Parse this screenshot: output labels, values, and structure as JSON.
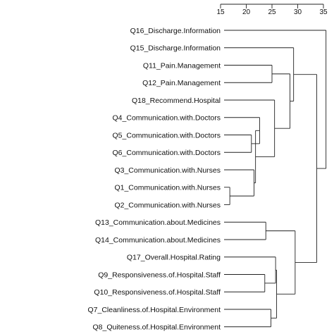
{
  "axis": {
    "tick_labels": [
      "15",
      "20",
      "25",
      "30",
      "35"
    ],
    "tick_values": [
      15,
      20,
      25,
      30,
      35
    ],
    "range": [
      15,
      35
    ]
  },
  "colors": {
    "line": "#222222",
    "text": "#111111",
    "background": "#ffffff"
  },
  "leaves": [
    "Q16_Discharge.Information",
    "Q15_Discharge.Information",
    "Q11_Pain.Management",
    "Q12_Pain.Management",
    "Q18_Recommend.Hospital",
    "Q4_Communication.with.Doctors",
    "Q5_Communication.with.Doctors",
    "Q6_Communication.with.Doctors",
    "Q3_Communication.with.Nurses",
    "Q1_Communication.with.Nurses",
    "Q2_Communication.with.Nurses",
    "Q13_Communication.about.Medicines",
    "Q14_Communication.about.Medicines",
    "Q17_Overall.Hospital.Rating",
    "Q9_Responsiveness.of.Hospital.Staff",
    "Q10_Responsiveness.of.Hospital.Staff",
    "Q7_Cleanliness.of.Hospital.Environment",
    "Q8_Quiteness.of.Hospital.Environment"
  ],
  "merges": [
    {
      "a": "L9",
      "b": "L10",
      "height": 24.3
    },
    {
      "a": "L2",
      "b": "L3",
      "height": 25.0
    },
    {
      "a": "L5",
      "b": "L6",
      "height": 25.0
    },
    {
      "a": "L15",
      "b": "L16",
      "height": 27.8
    },
    {
      "a": "L16_",
      "b": "L17",
      "height": 27.8
    },
    {
      "a": "L8",
      "b": "M1",
      "height": 26.2
    },
    {
      "a": "M3",
      "b": "L7",
      "height": 25.7
    },
    {
      "a": "L14",
      "b": "M4",
      "height": 28.6
    },
    {
      "a": "L11",
      "b": "L12",
      "height": 27.6
    },
    {
      "a": "M6",
      "b": "M9",
      "height": 29.5
    },
    {
      "a": "L4",
      "b": "M7",
      "height": 26.8
    },
    {
      "a": "M2",
      "b": "M11",
      "height": 27.5
    },
    {
      "a": "M10",
      "b": "M12",
      "height": 29.5
    },
    {
      "a": "L1",
      "b": "M12",
      "height": 29.5
    },
    {
      "a": "M14",
      "b": "M13",
      "height": 33.7
    },
    {
      "a": "L0",
      "b": "M15",
      "height": 33.7
    }
  ]
}
